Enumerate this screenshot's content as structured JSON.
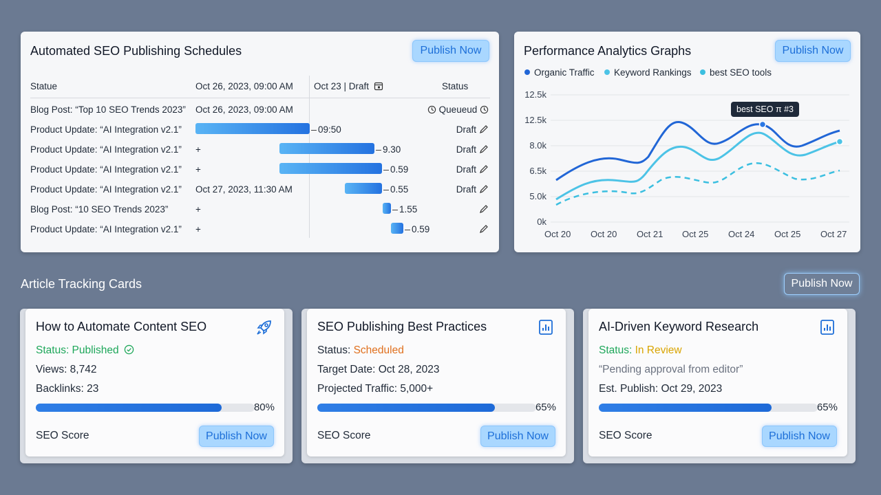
{
  "schedules": {
    "title": "Automated SEO Publishing Schedules",
    "publish_label": "Publish Now",
    "headers": {
      "col1": "Statue",
      "col2": "Oct 26, 2023, 09:00 AM",
      "col3": "Oct 23 | Draft",
      "col4": "Status"
    },
    "rows": [
      {
        "title": "Blog Post: “Top 10 SEO Trends 2023”",
        "date": "Oct 26, 2023, 09:00 AM",
        "value": "",
        "status": "Queueud",
        "bar": 0
      },
      {
        "title": "Product Update: “AI Integration v2.1”",
        "date": "",
        "value": "09:50",
        "status": "Draft",
        "bar": 1
      },
      {
        "title": "Product Update: “AI Integration v2.1”",
        "date": "+",
        "value": "9.30",
        "status": "Draft",
        "bar": 1
      },
      {
        "title": "Product Update: “AI Integration v2.1”",
        "date": "+",
        "value": "0.59",
        "status": "Draft",
        "bar": 1
      },
      {
        "title": "Product Update: “AI Integration v2.1”",
        "date": "Oct 27, 2023, 11:30 AM",
        "value": "0.55",
        "status": "Draft",
        "bar": 1
      },
      {
        "title": "Blog Post: “10 SEO Trends 2023”",
        "date": "+",
        "value": "1.55",
        "status": "",
        "bar": 1
      },
      {
        "title": "Product Update: “AI Integration v2.1”",
        "date": "+",
        "value": "0.59",
        "status": "",
        "bar": 1
      }
    ]
  },
  "analytics": {
    "title": "Performance Analytics Graphs",
    "publish_label": "Publish Now",
    "tooltip": "best SEO π #3"
  },
  "chart_data": {
    "type": "line",
    "title": "Performance Analytics Graphs",
    "x": [
      "Oct 20",
      "Oct 20",
      "Oct 21",
      "Oct 25",
      "Oct 24",
      "Oct 25",
      "Oct 27"
    ],
    "y_ticks": [
      "12.5k",
      "12.5k",
      "8.0k",
      "6.5k",
      "5.0k",
      "0k"
    ],
    "legend_position": "top",
    "series": [
      {
        "name": "Organic Traffic",
        "color": "#2166d6",
        "style": "solid"
      },
      {
        "name": "Keyword Rankings",
        "color": "#4cc3e6",
        "style": "solid"
      },
      {
        "name": "best SEO tools",
        "color": "#3bbfe0",
        "style": "dashed"
      }
    ],
    "grid": true
  },
  "cards_section": {
    "title": "Article Tracking Cards",
    "publish_label": "Publish Now"
  },
  "cards": [
    {
      "title": "How to Automate Content SEO",
      "icon": "rocket-icon",
      "status_label": "Status: Published",
      "line2": "Views: 8,742",
      "line3": "Backlinks: 23",
      "progress": 80,
      "pct": "80%",
      "seo_label": "SEO Score",
      "publish_label": "Publish Now"
    },
    {
      "title": "SEO Publishing Best Practices",
      "icon": "report-icon",
      "status_prefix": "Status: ",
      "status_value": "Scheduled",
      "line2": "Target Date: Oct 28, 2023",
      "line3": "Projected Traffic: 5,000+",
      "progress": 65,
      "pct": "65%",
      "seo_label": "SEO Score",
      "publish_label": "Publish Now"
    },
    {
      "title": "AI-Driven Keyword Research",
      "icon": "report-icon",
      "status_prefix": "Status: ",
      "status_value": "In Review",
      "line2": "“Pending approval from editor”",
      "line3": "Est. Publish: Oct 29, 2023",
      "progress": 65,
      "pct": "65%",
      "seo_label": "SEO Score",
      "publish_label": "Publish Now"
    }
  ],
  "colors": {
    "published": "#1ea75a",
    "scheduled": "#e0701e",
    "in_review": "#d9a400"
  }
}
